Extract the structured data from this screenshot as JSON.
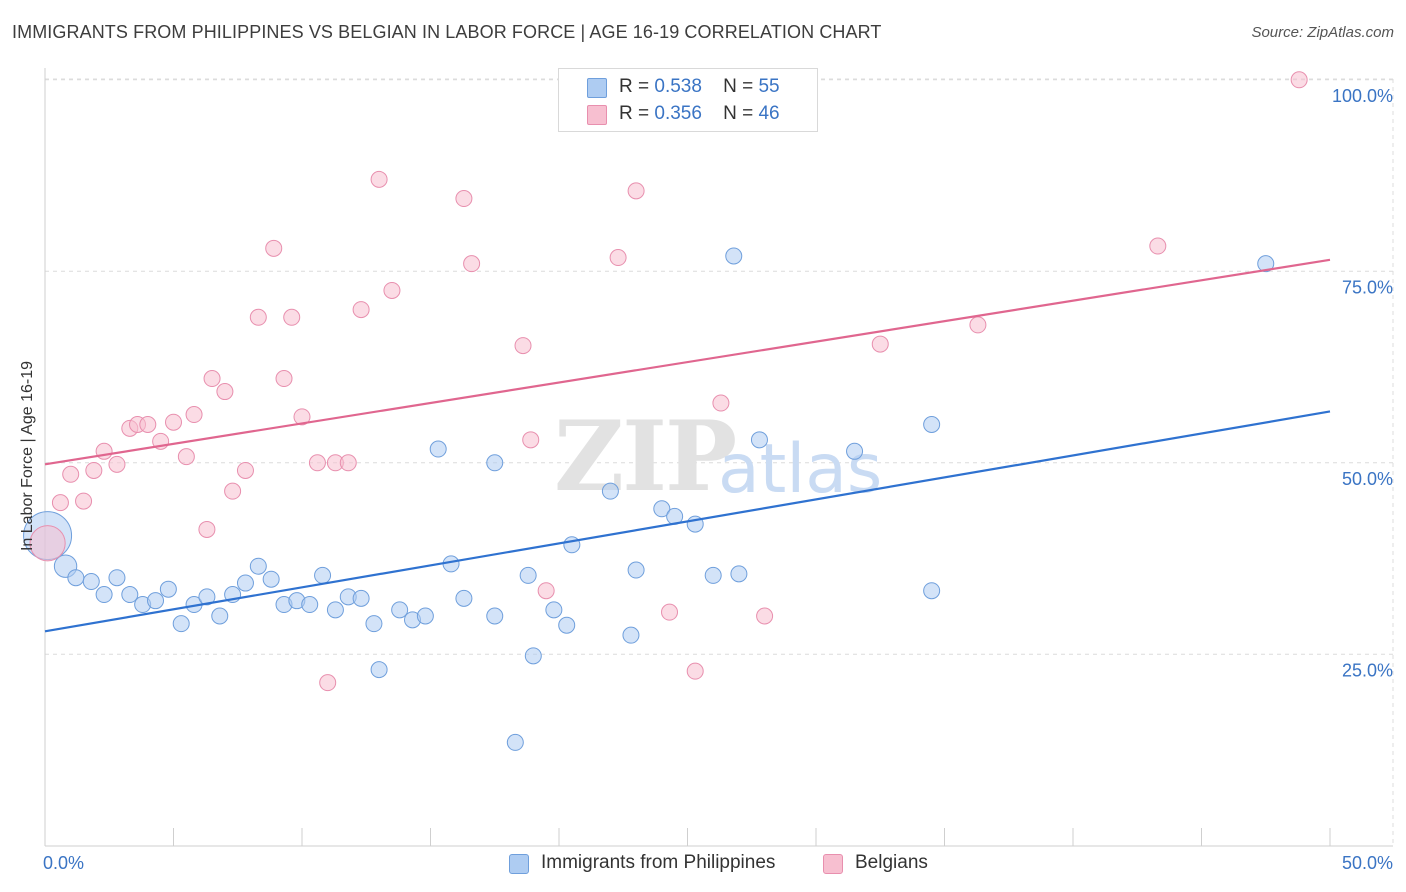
{
  "header": {
    "title": "IMMIGRANTS FROM PHILIPPINES VS BELGIAN IN LABOR FORCE | AGE 16-19 CORRELATION CHART",
    "source": "Source: ZipAtlas.com"
  },
  "watermark": {
    "zip": "ZIP",
    "atlas": "atlas"
  },
  "legend": {
    "rows": [
      {
        "r_label": "R =",
        "r_value": "0.538",
        "n_label": "N =",
        "n_value": "55"
      },
      {
        "r_label": "R =",
        "r_value": "0.356",
        "n_label": "N =",
        "n_value": "46"
      }
    ]
  },
  "colors": {
    "blue_fill": "#aeccf2",
    "blue_stroke": "#6f9fdc",
    "blue_line": "#2f72d0",
    "pink_fill": "#f7bfd0",
    "pink_stroke": "#e88fae",
    "pink_line": "#e0668f",
    "tick_label": "#3a74c4",
    "grid": "#dcdcdc"
  },
  "chart_data": {
    "type": "scatter",
    "ylabel": "In Labor Force | Age 16-19",
    "xlim": [
      0,
      50
    ],
    "ylim": [
      0,
      102
    ],
    "x_tick_labels": [
      "0.0%",
      "50.0%"
    ],
    "y_ticks": [
      {
        "value": 25,
        "label": "25.0%"
      },
      {
        "value": 50,
        "label": "50.0%"
      },
      {
        "value": 75,
        "label": "75.0%"
      },
      {
        "value": 100,
        "label": "100.0%"
      }
    ],
    "grid": true,
    "series": [
      {
        "name": "Immigrants from Philippines",
        "color": "#aeccf2",
        "trend": {
          "x": [
            0,
            50
          ],
          "y": [
            28.0,
            56.7
          ]
        },
        "points": [
          [
            0.1,
            40.5,
            3
          ],
          [
            0.8,
            36.5,
            1.4
          ],
          [
            1.2,
            35.0,
            1
          ],
          [
            1.8,
            34.5,
            1
          ],
          [
            2.3,
            32.8,
            1
          ],
          [
            2.8,
            35.0,
            1
          ],
          [
            3.3,
            32.8,
            1
          ],
          [
            3.8,
            31.5,
            1
          ],
          [
            4.3,
            32.0,
            1
          ],
          [
            4.8,
            33.5,
            1
          ],
          [
            5.3,
            29.0,
            1
          ],
          [
            5.8,
            31.5,
            1
          ],
          [
            6.3,
            32.5,
            1
          ],
          [
            6.8,
            30.0,
            1
          ],
          [
            7.3,
            32.8,
            1
          ],
          [
            7.8,
            34.3,
            1
          ],
          [
            8.3,
            36.5,
            1
          ],
          [
            8.8,
            34.8,
            1
          ],
          [
            9.3,
            31.5,
            1
          ],
          [
            9.8,
            32.0,
            1
          ],
          [
            10.3,
            31.5,
            1
          ],
          [
            10.8,
            35.3,
            1
          ],
          [
            11.3,
            30.8,
            1
          ],
          [
            11.8,
            32.5,
            1
          ],
          [
            12.3,
            32.3,
            1
          ],
          [
            12.8,
            29.0,
            1
          ],
          [
            13.0,
            23.0,
            1
          ],
          [
            13.8,
            30.8,
            1
          ],
          [
            14.3,
            29.5,
            1
          ],
          [
            14.8,
            30.0,
            1
          ],
          [
            15.3,
            51.8,
            1
          ],
          [
            15.8,
            36.8,
            1
          ],
          [
            16.3,
            32.3,
            1
          ],
          [
            17.5,
            50.0,
            1
          ],
          [
            17.5,
            30.0,
            1
          ],
          [
            18.3,
            13.5,
            1
          ],
          [
            18.8,
            35.3,
            1
          ],
          [
            19.0,
            24.8,
            1
          ],
          [
            19.8,
            30.8,
            1
          ],
          [
            20.3,
            28.8,
            1
          ],
          [
            20.5,
            39.3,
            1
          ],
          [
            22.0,
            46.3,
            1
          ],
          [
            22.8,
            27.5,
            1
          ],
          [
            23.0,
            36.0,
            1
          ],
          [
            24.0,
            44.0,
            1
          ],
          [
            24.5,
            43.0,
            1
          ],
          [
            25.3,
            42.0,
            1
          ],
          [
            26.0,
            35.3,
            1
          ],
          [
            26.8,
            77.0,
            1
          ],
          [
            27.0,
            35.5,
            1
          ],
          [
            27.8,
            53.0,
            1
          ],
          [
            31.5,
            51.5,
            1
          ],
          [
            34.5,
            55.0,
            1
          ],
          [
            34.5,
            33.3,
            1
          ],
          [
            47.5,
            76.0,
            1
          ]
        ]
      },
      {
        "name": "Belgians",
        "color": "#f7bfd0",
        "trend": {
          "x": [
            0,
            50
          ],
          "y": [
            49.8,
            76.5
          ]
        },
        "points": [
          [
            0.1,
            39.5,
            2.2
          ],
          [
            0.6,
            44.8,
            1
          ],
          [
            1.0,
            48.5,
            1
          ],
          [
            1.5,
            45.0,
            1
          ],
          [
            1.9,
            49.0,
            1
          ],
          [
            2.3,
            51.5,
            1
          ],
          [
            2.8,
            49.8,
            1
          ],
          [
            3.3,
            54.5,
            1
          ],
          [
            3.6,
            55.0,
            1
          ],
          [
            4.0,
            55.0,
            1
          ],
          [
            4.5,
            52.8,
            1
          ],
          [
            5.0,
            55.3,
            1
          ],
          [
            5.5,
            50.8,
            1
          ],
          [
            5.8,
            56.3,
            1
          ],
          [
            6.3,
            41.3,
            1
          ],
          [
            6.5,
            61.0,
            1
          ],
          [
            7.0,
            59.3,
            1
          ],
          [
            7.3,
            46.3,
            1
          ],
          [
            7.8,
            49.0,
            1
          ],
          [
            8.3,
            69.0,
            1
          ],
          [
            8.9,
            78.0,
            1
          ],
          [
            9.3,
            61.0,
            1
          ],
          [
            9.6,
            69.0,
            1
          ],
          [
            10.0,
            56.0,
            1
          ],
          [
            10.6,
            50.0,
            1
          ],
          [
            11.0,
            21.3,
            1
          ],
          [
            11.3,
            50.0,
            1
          ],
          [
            11.8,
            50.0,
            1
          ],
          [
            12.3,
            70.0,
            1
          ],
          [
            13.0,
            87.0,
            1
          ],
          [
            13.5,
            72.5,
            1
          ],
          [
            16.3,
            84.5,
            1
          ],
          [
            16.6,
            76.0,
            1
          ],
          [
            18.6,
            65.3,
            1
          ],
          [
            18.9,
            53.0,
            1
          ],
          [
            19.5,
            33.3,
            1
          ],
          [
            22.3,
            76.8,
            1
          ],
          [
            23.0,
            85.5,
            1
          ],
          [
            24.3,
            30.5,
            1
          ],
          [
            25.3,
            22.8,
            1
          ],
          [
            26.3,
            57.8,
            1
          ],
          [
            28.0,
            30.0,
            1
          ],
          [
            32.5,
            65.5,
            1
          ],
          [
            36.3,
            68.0,
            1
          ],
          [
            43.3,
            78.3,
            1
          ],
          [
            48.8,
            100.0,
            1
          ]
        ]
      }
    ]
  }
}
